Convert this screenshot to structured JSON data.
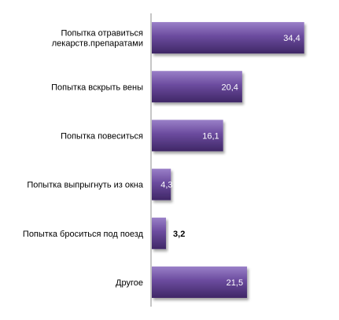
{
  "chart_data": {
    "type": "bar",
    "orientation": "horizontal",
    "categories": [
      [
        "Попытка отравиться",
        "лекарств.препаратами"
      ],
      [
        "Попытка вскрыть вены"
      ],
      [
        "Попытка повеситься"
      ],
      [
        "Попытка выпрыгнуть из окна"
      ],
      [
        "Попытка броситься под поезд"
      ],
      [
        "Другое"
      ]
    ],
    "values": [
      34.4,
      20.4,
      16.1,
      4.3,
      3.2,
      21.5
    ],
    "value_labels": [
      "34,4",
      "20,4",
      "16,1",
      "4,3",
      "3,2",
      "21,5"
    ],
    "xlim": [
      0,
      38
    ],
    "grid": false,
    "legend": "none",
    "bar_color": "#6a4a9c",
    "bar_gradient": [
      "#9a80c8",
      "#6b4b9e",
      "#3f2766"
    ],
    "axis_color": "#8c8c8c"
  }
}
